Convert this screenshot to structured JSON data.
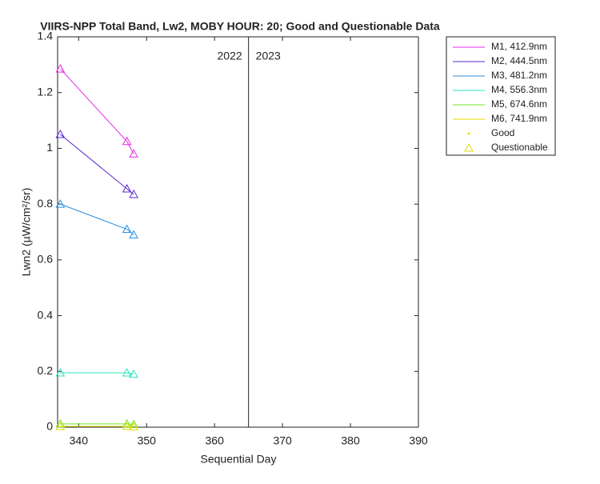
{
  "chart_data": {
    "type": "line",
    "title": "VIIRS-NPP Total Band, Lw2, MOBY HOUR: 20;  Good and Questionable Data",
    "x_label": "Sequential Day",
    "y_label": "Lwn2 (µW/cm²/sr)",
    "x": [
      337.3,
      347.1,
      348.1
    ],
    "series": [
      {
        "name": "M1, 412.9nm",
        "color": "#e62ee6",
        "values": [
          1.285,
          1.025,
          0.98
        ]
      },
      {
        "name": "M2, 444.5nm",
        "color": "#5a28d2",
        "values": [
          1.05,
          0.855,
          0.835
        ]
      },
      {
        "name": "M3, 481.2nm",
        "color": "#2890e6",
        "values": [
          0.8,
          0.71,
          0.69
        ]
      },
      {
        "name": "M4, 556.3nm",
        "color": "#28e6c0",
        "values": [
          0.195,
          0.195,
          0.19
        ]
      },
      {
        "name": "M5, 674.6nm",
        "color": "#6ee628",
        "values": [
          0.012,
          0.012,
          0.01
        ]
      },
      {
        "name": "M6, 741.9nm",
        "color": "#e6d800",
        "values": [
          0.003,
          0.003,
          0.002
        ]
      }
    ],
    "marker_legend": [
      "Good",
      "Questionable"
    ],
    "marker_color": "#e6d800",
    "divider_x": 365,
    "annotations": [
      "2022",
      "2023"
    ],
    "xlim": [
      336.9,
      390
    ],
    "xticks": [
      340,
      350,
      360,
      370,
      380,
      390
    ],
    "ylim": [
      0,
      1.4
    ],
    "yticks": [
      0,
      0.2,
      0.4,
      0.6,
      0.8,
      1,
      1.2,
      1.4
    ]
  }
}
